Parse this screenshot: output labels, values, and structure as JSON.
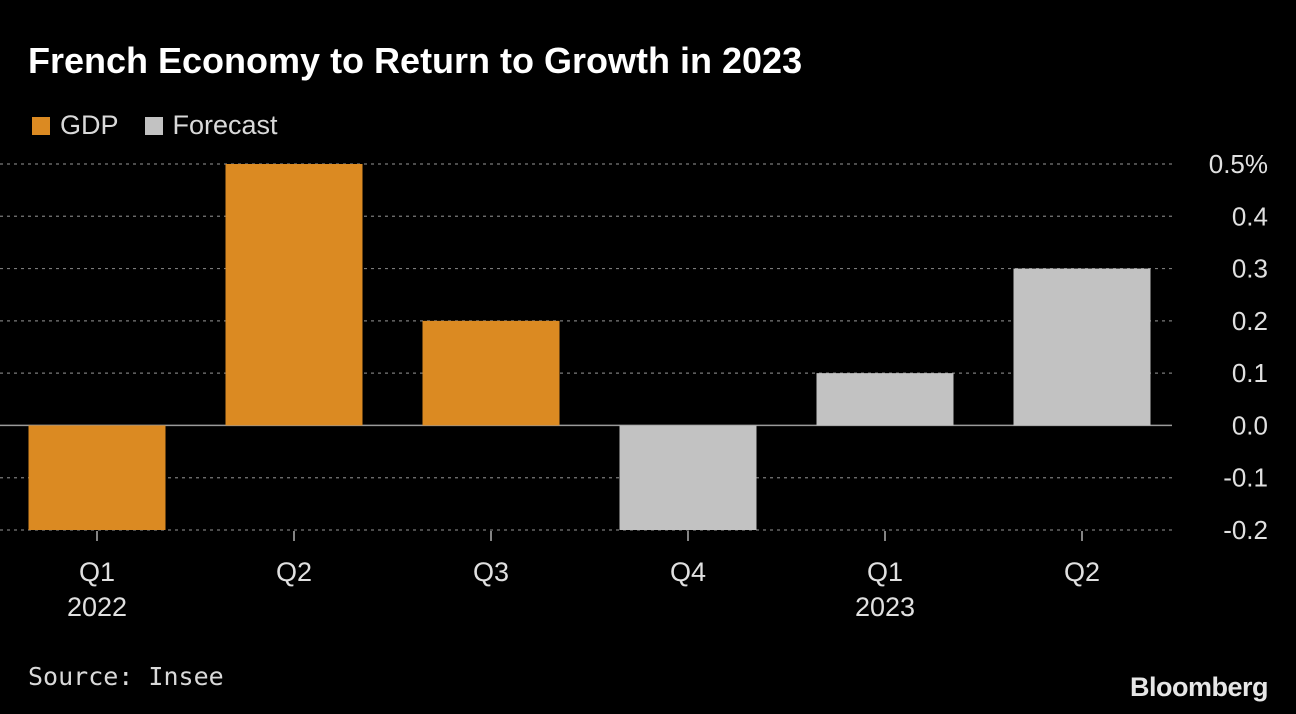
{
  "chart_data": {
    "type": "bar",
    "title": "French Economy to Return to Growth in 2023",
    "categories": [
      "Q1",
      "Q2",
      "Q3",
      "Q4",
      "Q1",
      "Q2"
    ],
    "year_labels": [
      "2022",
      "",
      "",
      "",
      "2023",
      ""
    ],
    "values": [
      -0.2,
      0.5,
      0.2,
      -0.2,
      0.1,
      0.3
    ],
    "series_type": [
      "GDP",
      "GDP",
      "GDP",
      "Forecast",
      "Forecast",
      "Forecast"
    ],
    "legend": [
      {
        "name": "GDP",
        "color": "#db8a22"
      },
      {
        "name": "Forecast",
        "color": "#c2c2c2"
      }
    ],
    "ylim": [
      -0.2,
      0.5
    ],
    "yticks": [
      0.5,
      0.4,
      0.3,
      0.2,
      0.1,
      0.0,
      -0.1,
      -0.2
    ],
    "ytick_labels": [
      "0.5%",
      "0.4",
      "0.3",
      "0.2",
      "0.1",
      "0.0",
      "-0.1",
      "-0.2"
    ],
    "xlabel": "",
    "ylabel": "",
    "grid": true,
    "legend_position": "top-left"
  },
  "source": "Source: Insee",
  "brand": "Bloomberg"
}
